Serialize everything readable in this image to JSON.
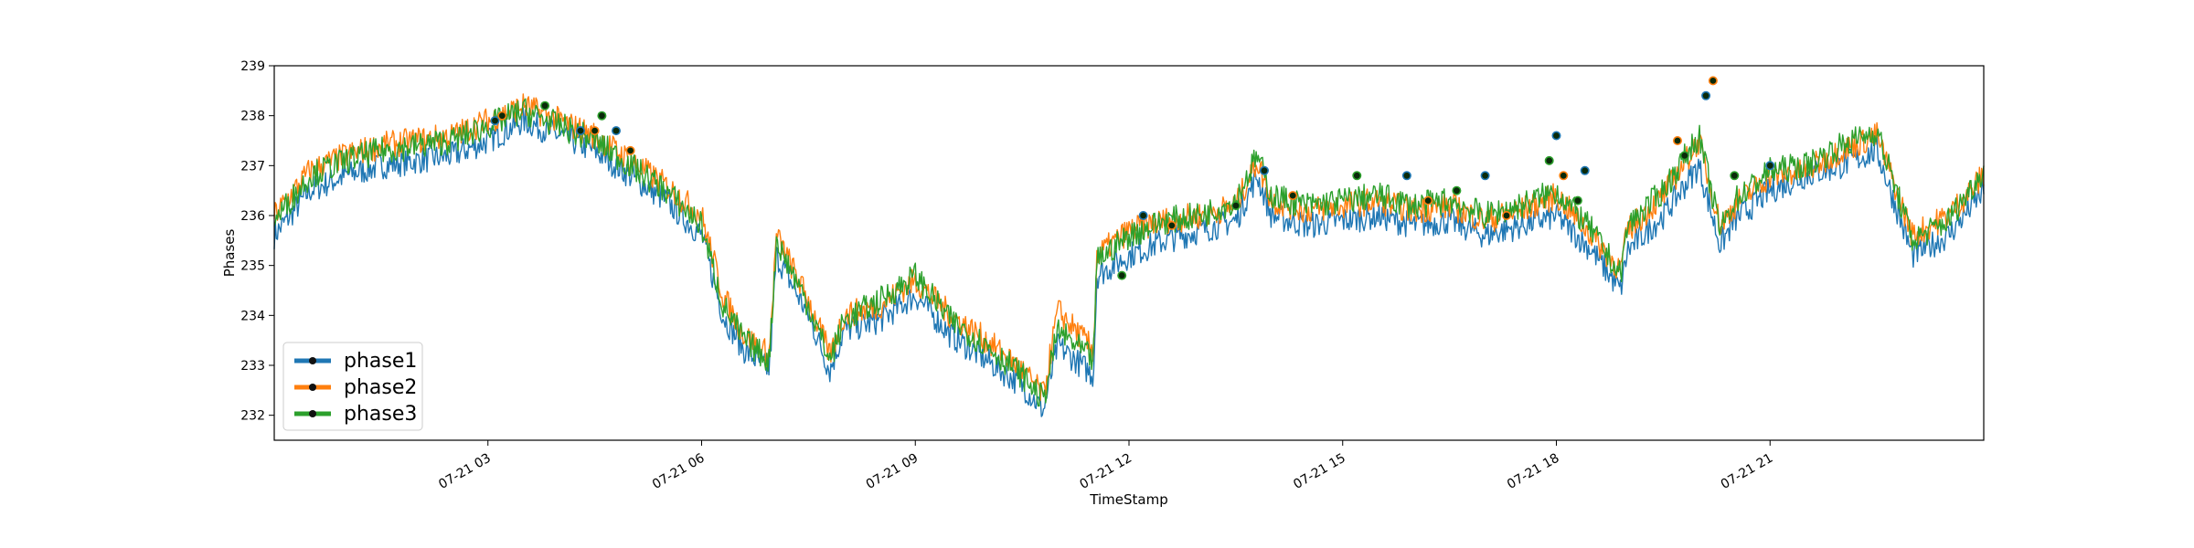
{
  "chart_data": {
    "type": "line",
    "title": "",
    "xlabel": "TimeStamp",
    "ylabel": "Phases",
    "ylim": [
      231.5,
      239
    ],
    "xlim_hours": [
      0,
      24
    ],
    "yticks": [
      232,
      233,
      234,
      235,
      236,
      237,
      238,
      239
    ],
    "xticks": [
      {
        "label": "07-21 03",
        "hour": 3
      },
      {
        "label": "07-21 06",
        "hour": 6
      },
      {
        "label": "07-21 09",
        "hour": 9
      },
      {
        "label": "07-21 12",
        "hour": 12
      },
      {
        "label": "07-21 15",
        "hour": 15
      },
      {
        "label": "07-21 18",
        "hour": 18
      },
      {
        "label": "07-21 21",
        "hour": 21
      }
    ],
    "legend_position": "lower-left",
    "grid": false,
    "series": [
      {
        "name": "phase1",
        "color": "#1f77b4",
        "x_hours": [
          0,
          0.5,
          1,
          1.5,
          2,
          2.5,
          3,
          3.5,
          4,
          4.5,
          5,
          5.5,
          6,
          6.3,
          6.6,
          6.95,
          7.05,
          7.5,
          7.8,
          8,
          8.5,
          9,
          9.5,
          10,
          10.5,
          10.8,
          11,
          11.5,
          11.55,
          12,
          12.5,
          13,
          13.5,
          13.8,
          14,
          14.5,
          15,
          15.5,
          16,
          16.5,
          17,
          17.5,
          18,
          18.5,
          18.9,
          19,
          19.5,
          20,
          20.3,
          20.5,
          21,
          21.5,
          22,
          22.5,
          23,
          23.5,
          24
        ],
        "y": [
          235.6,
          236.5,
          236.8,
          237.0,
          237.1,
          237.2,
          237.5,
          237.9,
          237.6,
          237.3,
          236.8,
          236.3,
          235.6,
          234.0,
          233.3,
          232.9,
          235.2,
          234.0,
          232.9,
          233.7,
          233.9,
          234.4,
          233.6,
          233.1,
          232.6,
          232.1,
          233.4,
          232.8,
          234.8,
          235.2,
          235.5,
          235.7,
          235.9,
          236.8,
          236.0,
          235.8,
          235.9,
          236.0,
          235.8,
          235.9,
          235.6,
          235.8,
          236.0,
          235.3,
          234.5,
          235.3,
          236.0,
          237.0,
          235.4,
          235.9,
          236.5,
          236.8,
          237.0,
          237.3,
          235.2,
          235.6,
          236.5
        ]
      },
      {
        "name": "phase2",
        "color": "#ff7f0e",
        "x_hours": [
          0,
          0.5,
          1,
          1.5,
          2,
          2.5,
          3,
          3.5,
          4,
          4.5,
          5,
          5.5,
          6,
          6.3,
          6.6,
          6.95,
          7.05,
          7.5,
          7.8,
          8,
          8.5,
          9,
          9.5,
          10,
          10.5,
          10.8,
          11,
          11.5,
          11.55,
          12,
          12.5,
          13,
          13.5,
          13.8,
          14,
          14.5,
          15,
          15.5,
          16,
          16.5,
          17,
          17.5,
          18,
          18.5,
          18.9,
          19,
          19.5,
          20,
          20.3,
          20.5,
          21,
          21.5,
          22,
          22.5,
          23,
          23.5,
          24
        ],
        "y": [
          236.0,
          236.9,
          237.2,
          237.4,
          237.5,
          237.6,
          237.9,
          238.2,
          237.9,
          237.6,
          237.1,
          236.6,
          236.0,
          234.4,
          233.6,
          233.2,
          235.6,
          234.3,
          233.2,
          234.0,
          234.2,
          234.7,
          234.0,
          233.5,
          232.9,
          232.4,
          234.1,
          233.3,
          235.2,
          235.7,
          235.9,
          236.0,
          236.2,
          237.1,
          236.3,
          236.1,
          236.2,
          236.3,
          236.1,
          236.2,
          235.9,
          236.1,
          236.4,
          235.6,
          234.9,
          235.7,
          236.4,
          237.5,
          235.8,
          236.2,
          236.8,
          236.9,
          237.3,
          237.6,
          235.6,
          236.0,
          236.8
        ]
      },
      {
        "name": "phase3",
        "color": "#2ca02c",
        "x_hours": [
          0,
          0.5,
          1,
          1.5,
          2,
          2.5,
          3,
          3.5,
          4,
          4.5,
          5,
          5.5,
          6,
          6.3,
          6.6,
          6.95,
          7.05,
          7.5,
          7.8,
          8,
          8.5,
          9,
          9.5,
          10,
          10.5,
          10.8,
          11,
          11.5,
          11.55,
          12,
          12.5,
          13,
          13.5,
          13.8,
          14,
          14.5,
          15,
          15.5,
          16,
          16.5,
          17,
          17.5,
          18,
          18.5,
          18.9,
          19,
          19.5,
          20,
          20.3,
          20.5,
          21,
          21.5,
          22,
          22.5,
          23,
          23.5,
          24
        ],
        "y": [
          235.9,
          236.8,
          237.1,
          237.3,
          237.4,
          237.5,
          237.8,
          238.1,
          237.8,
          237.5,
          237.0,
          236.5,
          235.8,
          234.2,
          233.5,
          233.1,
          235.5,
          234.2,
          233.1,
          233.9,
          234.3,
          234.8,
          233.9,
          233.4,
          232.8,
          232.3,
          233.7,
          233.1,
          235.1,
          235.6,
          235.9,
          236.0,
          236.3,
          237.2,
          236.4,
          236.2,
          236.3,
          236.4,
          236.2,
          236.3,
          236.0,
          236.2,
          236.5,
          235.7,
          234.8,
          235.8,
          236.5,
          237.6,
          235.7,
          236.3,
          236.9,
          237.0,
          237.4,
          237.7,
          235.5,
          235.9,
          236.9
        ]
      }
    ],
    "anomaly_markers": [
      {
        "hour": 3.1,
        "value": 237.9
      },
      {
        "hour": 3.2,
        "value": 238.0
      },
      {
        "hour": 3.8,
        "value": 238.2
      },
      {
        "hour": 4.3,
        "value": 237.7
      },
      {
        "hour": 4.5,
        "value": 237.7
      },
      {
        "hour": 4.6,
        "value": 238.0
      },
      {
        "hour": 4.8,
        "value": 237.7
      },
      {
        "hour": 5.0,
        "value": 237.3
      },
      {
        "hour": 11.9,
        "value": 234.8
      },
      {
        "hour": 12.2,
        "value": 236.0
      },
      {
        "hour": 12.6,
        "value": 235.8
      },
      {
        "hour": 13.5,
        "value": 236.2
      },
      {
        "hour": 13.9,
        "value": 236.9
      },
      {
        "hour": 14.3,
        "value": 236.4
      },
      {
        "hour": 15.2,
        "value": 236.8
      },
      {
        "hour": 15.9,
        "value": 236.8
      },
      {
        "hour": 16.2,
        "value": 236.3
      },
      {
        "hour": 16.6,
        "value": 236.5
      },
      {
        "hour": 17.0,
        "value": 236.8
      },
      {
        "hour": 17.3,
        "value": 236.0
      },
      {
        "hour": 17.9,
        "value": 237.1
      },
      {
        "hour": 18.0,
        "value": 237.6
      },
      {
        "hour": 18.1,
        "value": 236.8
      },
      {
        "hour": 18.3,
        "value": 236.3
      },
      {
        "hour": 18.4,
        "value": 236.9
      },
      {
        "hour": 19.7,
        "value": 237.5
      },
      {
        "hour": 19.8,
        "value": 237.2
      },
      {
        "hour": 20.1,
        "value": 238.4
      },
      {
        "hour": 20.2,
        "value": 238.7
      },
      {
        "hour": 20.5,
        "value": 236.8
      },
      {
        "hour": 21.0,
        "value": 237.0
      }
    ]
  }
}
